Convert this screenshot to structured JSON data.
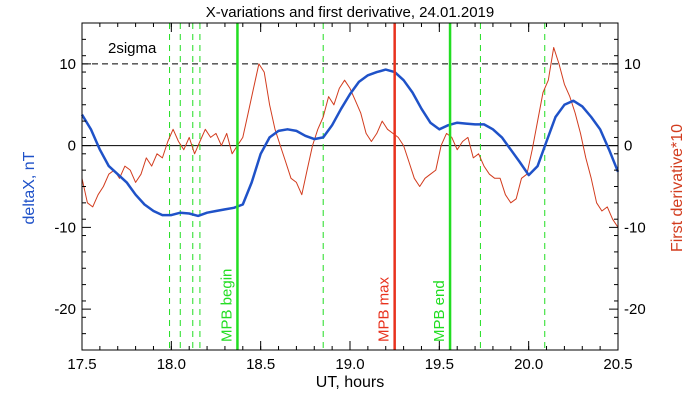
{
  "chart_data": {
    "type": "line",
    "title": "X-variations and first derivative, 24.01.2019",
    "xlabel": "UT, hours",
    "ylabel_left": "deltaX, nT",
    "ylabel_right": "First derivative*10",
    "annotation": "2sigma",
    "xlim": [
      17.5,
      20.5
    ],
    "ylim": [
      -25,
      15
    ],
    "x_ticks": [
      17.5,
      18.0,
      18.5,
      19.0,
      19.5,
      20.0,
      20.5
    ],
    "x_tick_labels": [
      "17.5",
      "18.0",
      "18.5",
      "19.0",
      "19.5",
      "20.0",
      "20.5"
    ],
    "y_ticks": [
      10,
      0,
      -10,
      -20
    ],
    "y_tick_labels": [
      "10",
      "0",
      "-10",
      "-20"
    ],
    "colors": {
      "deltaX": "#1f52c8",
      "derivative": "#d23c1e",
      "mpb_boundary": "#22dd22",
      "mpb_max": "#e8321e",
      "dashed_green": "#22dd22",
      "reference": "#000000"
    },
    "series": [
      {
        "name": "deltaX, nT",
        "axis": "left",
        "color": "#1f52c8",
        "x": [
          17.5,
          17.55,
          17.6,
          17.65,
          17.7,
          17.75,
          17.8,
          17.85,
          17.9,
          17.95,
          18.0,
          18.05,
          18.1,
          18.15,
          18.2,
          18.25,
          18.3,
          18.35,
          18.4,
          18.45,
          18.5,
          18.55,
          18.6,
          18.65,
          18.7,
          18.75,
          18.8,
          18.85,
          18.9,
          18.95,
          19.0,
          19.05,
          19.1,
          19.15,
          19.2,
          19.25,
          19.3,
          19.35,
          19.4,
          19.45,
          19.5,
          19.55,
          19.6,
          19.65,
          19.7,
          19.75,
          19.8,
          19.85,
          19.9,
          19.95,
          20.0,
          20.05,
          20.1,
          20.15,
          20.2,
          20.25,
          20.3,
          20.35,
          20.4,
          20.45,
          20.5
        ],
        "y": [
          3.8,
          2.0,
          -0.5,
          -2.5,
          -3.5,
          -4.5,
          -6.0,
          -7.2,
          -8.0,
          -8.5,
          -8.5,
          -8.2,
          -8.3,
          -8.6,
          -8.2,
          -8.0,
          -7.8,
          -7.6,
          -7.2,
          -4.5,
          -1.0,
          1.0,
          1.8,
          2.0,
          1.8,
          1.2,
          0.8,
          1.0,
          2.5,
          4.5,
          6.3,
          7.8,
          8.6,
          9.0,
          9.3,
          9.0,
          8.0,
          6.5,
          4.5,
          2.8,
          2.0,
          2.5,
          2.8,
          2.7,
          2.6,
          2.6,
          2.0,
          1.0,
          -0.5,
          -2.0,
          -3.6,
          -2.5,
          0.5,
          3.5,
          5.0,
          5.5,
          4.8,
          3.5,
          2.0,
          -0.5,
          -3.2
        ]
      },
      {
        "name": "First derivative*10",
        "axis": "right",
        "color": "#d23c1e",
        "x": [
          17.5,
          17.53,
          17.56,
          17.59,
          17.62,
          17.65,
          17.68,
          17.71,
          17.74,
          17.77,
          17.8,
          17.83,
          17.86,
          17.89,
          17.92,
          17.95,
          17.98,
          18.01,
          18.04,
          18.07,
          18.1,
          18.13,
          18.16,
          18.19,
          18.22,
          18.25,
          18.28,
          18.31,
          18.34,
          18.37,
          18.4,
          18.43,
          18.46,
          18.49,
          18.52,
          18.55,
          18.58,
          18.61,
          18.64,
          18.67,
          18.7,
          18.73,
          18.76,
          18.79,
          18.82,
          18.85,
          18.88,
          18.91,
          18.94,
          18.97,
          19.0,
          19.03,
          19.06,
          19.09,
          19.12,
          19.15,
          19.18,
          19.21,
          19.24,
          19.27,
          19.3,
          19.33,
          19.36,
          19.39,
          19.42,
          19.45,
          19.48,
          19.51,
          19.54,
          19.57,
          19.6,
          19.63,
          19.66,
          19.69,
          19.72,
          19.75,
          19.78,
          19.81,
          19.84,
          19.87,
          19.9,
          19.93,
          19.96,
          19.99,
          20.02,
          20.05,
          20.08,
          20.11,
          20.14,
          20.17,
          20.2,
          20.23,
          20.26,
          20.29,
          20.32,
          20.35,
          20.38,
          20.41,
          20.44,
          20.47,
          20.5
        ],
        "y": [
          -4.0,
          -7.0,
          -7.5,
          -6.0,
          -5.0,
          -3.5,
          -3.0,
          -4.0,
          -2.5,
          -3.0,
          -4.5,
          -3.5,
          -1.5,
          -2.5,
          -1.0,
          -1.5,
          0.5,
          2.0,
          0.5,
          -0.5,
          1.0,
          -1.0,
          0.5,
          2.0,
          1.0,
          1.5,
          0.0,
          1.5,
          -1.0,
          0.0,
          1.0,
          4.0,
          7.0,
          10.0,
          9.0,
          5.0,
          2.0,
          0.0,
          -2.0,
          -4.0,
          -4.5,
          -6.0,
          -3.0,
          0.0,
          2.0,
          3.5,
          6.0,
          5.0,
          7.0,
          8.0,
          7.0,
          5.5,
          4.0,
          1.5,
          0.5,
          1.5,
          3.0,
          2.0,
          1.5,
          1.0,
          0.0,
          -2.0,
          -4.0,
          -5.0,
          -4.0,
          -3.5,
          -3.0,
          0.0,
          1.5,
          1.0,
          -0.5,
          0.5,
          1.0,
          -1.5,
          -1.0,
          -2.5,
          -3.5,
          -4.0,
          -4.0,
          -6.0,
          -7.0,
          -6.5,
          -4.0,
          -3.5,
          -0.5,
          3.0,
          6.5,
          8.0,
          12.0,
          10.0,
          7.5,
          6.0,
          4.0,
          1.5,
          -1.5,
          -4.0,
          -7.0,
          -8.0,
          -7.5,
          -9.0,
          -10.0
        ]
      }
    ],
    "horizontal_lines": [
      {
        "name": "2sigma",
        "y": 10,
        "style": "dashed",
        "color": "#000000"
      },
      {
        "name": "zero",
        "y": 0,
        "style": "solid",
        "color": "#000000"
      }
    ],
    "vertical_dashed_green": [
      17.99,
      18.05,
      18.12,
      18.16,
      18.85,
      19.73,
      20.09
    ],
    "vertical_markers": [
      {
        "label": "MPB begin",
        "x": 18.37,
        "color": "#22dd22"
      },
      {
        "label": "MPB max",
        "x": 19.25,
        "color": "#e8321e"
      },
      {
        "label": "MPB end",
        "x": 19.56,
        "color": "#22dd22"
      }
    ]
  }
}
